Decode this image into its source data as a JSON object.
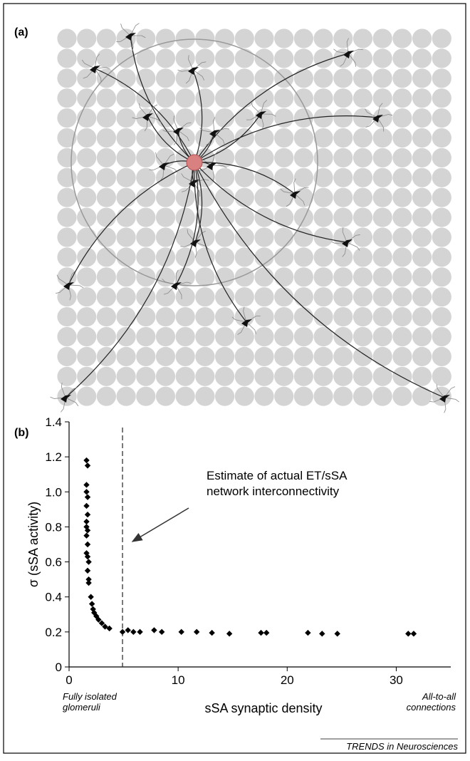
{
  "panel_a": {
    "label": "(a)"
  },
  "chart_data": {
    "type": "scatter",
    "panel_label": "(b)",
    "x_label": "sSA synaptic density",
    "y_label": "σ (sSA activity)",
    "annotation": [
      "Estimate of actual ET/sSA",
      "network interconnectivity"
    ],
    "left_note": [
      "Fully isolated",
      "glomeruli"
    ],
    "right_note": [
      "All-to-all",
      "connections"
    ],
    "xlim": [
      0,
      35
    ],
    "ylim": [
      0,
      1.4
    ],
    "xticks": [
      0,
      10,
      20,
      30
    ],
    "yticks": [
      0,
      0.2,
      0.4,
      0.6,
      0.8,
      {
        "value": 1,
        "label": "1.0"
      },
      1.2,
      1.4
    ],
    "vline": 4.9,
    "color": "#000000",
    "x": [
      1.6,
      1.7,
      1.6,
      1.6,
      1.7,
      1.6,
      1.7,
      1.6,
      1.6,
      1.7,
      1.6,
      1.7,
      1.6,
      1.7,
      1.8,
      1.7,
      1.8,
      1.8,
      2.0,
      2.1,
      2.2,
      2.3,
      2.5,
      2.7,
      3.0,
      3.3,
      3.7,
      4.9,
      5.4,
      5.9,
      6.5,
      7.8,
      8.5,
      10.3,
      11.7,
      13.1,
      14.7,
      17.6,
      18.1,
      21.9,
      23.2,
      24.6,
      31.1,
      31.6
    ],
    "values": [
      1.18,
      1.15,
      1.04,
      1.0,
      0.97,
      0.92,
      0.87,
      0.83,
      0.8,
      0.78,
      0.75,
      0.7,
      0.65,
      0.63,
      0.6,
      0.55,
      0.5,
      0.48,
      0.4,
      0.36,
      0.33,
      0.31,
      0.29,
      0.27,
      0.25,
      0.23,
      0.22,
      0.2,
      0.21,
      0.2,
      0.2,
      0.21,
      0.2,
      0.2,
      0.2,
      0.195,
      0.19,
      0.195,
      0.195,
      0.195,
      0.19,
      0.19,
      0.19,
      0.19
    ]
  },
  "footer": "TRENDS in Neurosciences"
}
